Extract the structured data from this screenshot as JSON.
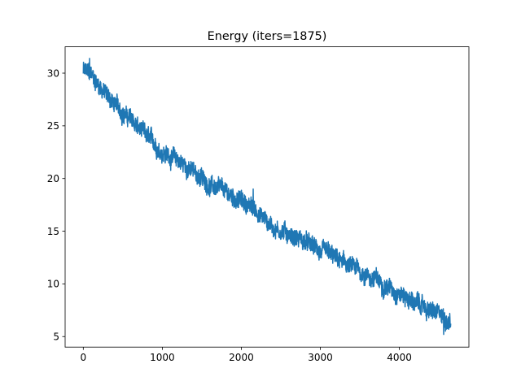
{
  "chart_data": {
    "type": "line",
    "title": "Energy (iters=1875)",
    "xlabel": "",
    "ylabel": "",
    "xlim": [
      -230,
      4880
    ],
    "ylim": [
      4.0,
      32.5
    ],
    "x_ticks": [
      0,
      1000,
      2000,
      3000,
      4000
    ],
    "y_ticks": [
      5,
      10,
      15,
      20,
      25,
      30
    ],
    "grid": false,
    "legend": "none",
    "series": [
      {
        "color": "#1f77b4",
        "style": "noisy line",
        "x_range": [
          0,
          4650
        ],
        "n_points": 1876,
        "trend": [
          {
            "x": 0,
            "y": 30.2
          },
          {
            "x": 100,
            "y": 29.8
          },
          {
            "x": 250,
            "y": 28.4
          },
          {
            "x": 400,
            "y": 27.0
          },
          {
            "x": 600,
            "y": 25.6
          },
          {
            "x": 800,
            "y": 23.9
          },
          {
            "x": 1000,
            "y": 22.6
          },
          {
            "x": 1200,
            "y": 21.7
          },
          {
            "x": 1400,
            "y": 20.6
          },
          {
            "x": 1600,
            "y": 19.4
          },
          {
            "x": 1800,
            "y": 18.6
          },
          {
            "x": 2000,
            "y": 17.9
          },
          {
            "x": 2200,
            "y": 16.9
          },
          {
            "x": 2400,
            "y": 15.4
          },
          {
            "x": 2600,
            "y": 14.8
          },
          {
            "x": 2800,
            "y": 14.0
          },
          {
            "x": 3000,
            "y": 13.0
          },
          {
            "x": 3200,
            "y": 12.3
          },
          {
            "x": 3400,
            "y": 11.5
          },
          {
            "x": 3600,
            "y": 10.8
          },
          {
            "x": 3800,
            "y": 10.0
          },
          {
            "x": 4000,
            "y": 9.2
          },
          {
            "x": 4200,
            "y": 8.2
          },
          {
            "x": 4400,
            "y": 7.4
          },
          {
            "x": 4600,
            "y": 6.6
          },
          {
            "x": 4650,
            "y": 6.6
          }
        ],
        "noise_amplitude": 0.75,
        "spikes": [
          {
            "x": 80,
            "y": 31.4
          },
          {
            "x": 2150,
            "y": 19.0
          },
          {
            "x": 3100,
            "y": 14.0
          },
          {
            "x": 4560,
            "y": 5.2
          }
        ]
      }
    ]
  }
}
